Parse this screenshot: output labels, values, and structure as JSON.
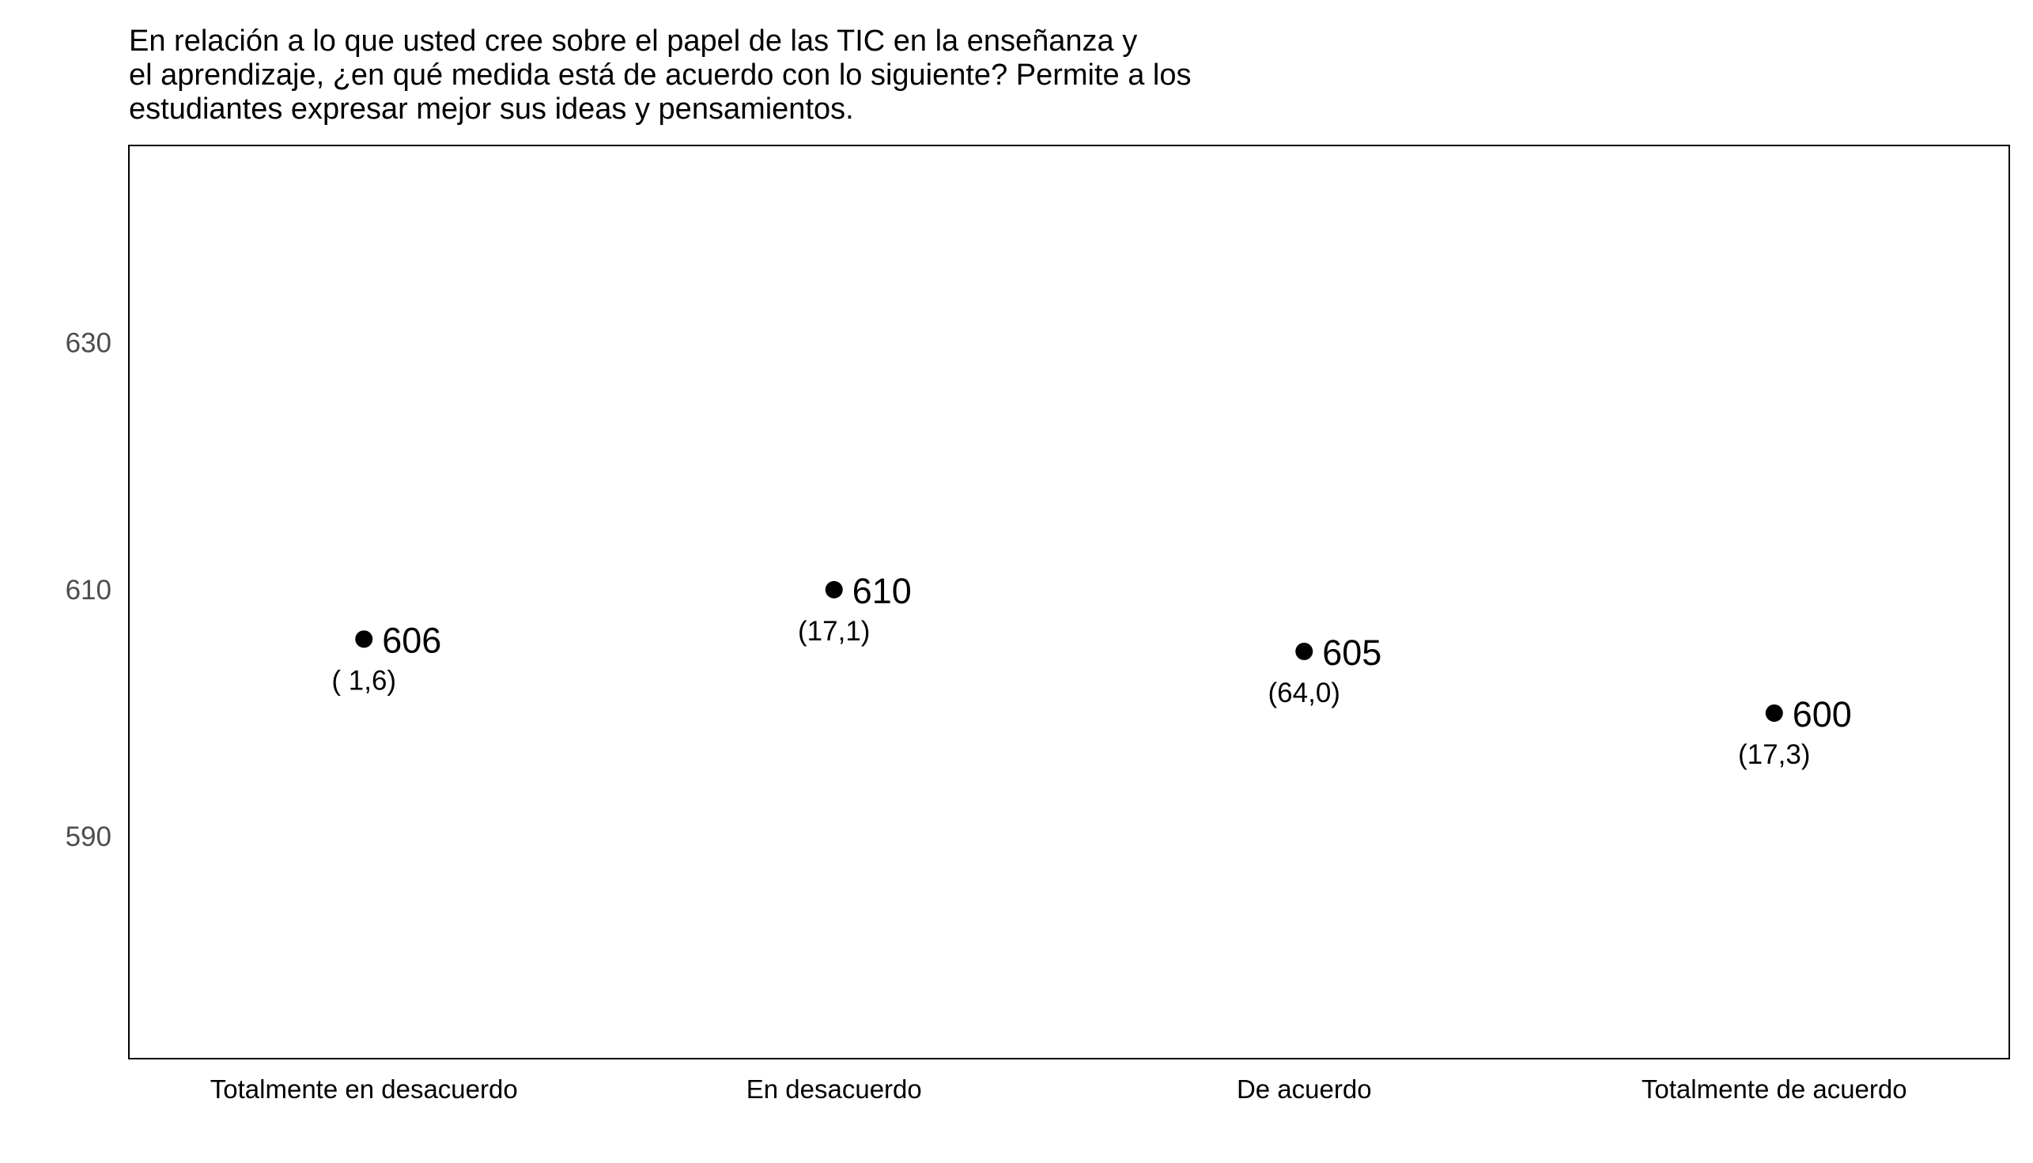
{
  "chart_data": {
    "type": "scatter",
    "title_lines": [
      "En relación a lo que usted cree sobre el papel de las TIC en la enseñanza y",
      "el aprendizaje, ¿en qué medida está de acuerdo con lo siguiente? Permite a los",
      "estudiantes expresar mejor sus ideas y pensamientos."
    ],
    "xlabel": "",
    "ylabel": "",
    "ylim": [
      572,
      646
    ],
    "yticks": [
      590,
      610,
      630
    ],
    "ytick_labels": [
      "590",
      "610",
      "630"
    ],
    "grid": false,
    "categories": [
      "Totalmente en desacuerdo",
      "En desacuerdo",
      "De acuerdo",
      "Totalmente de acuerdo"
    ],
    "values": [
      606,
      610,
      605,
      600
    ],
    "value_labels": [
      "606",
      "610",
      "605",
      "600"
    ],
    "percent_labels": [
      "( 1,6)",
      "(17,1)",
      "(64,0)",
      "(17,3)"
    ],
    "colors": {
      "point": "#000000",
      "frame": "#000000",
      "tick_text": "#4d4d4d"
    }
  }
}
